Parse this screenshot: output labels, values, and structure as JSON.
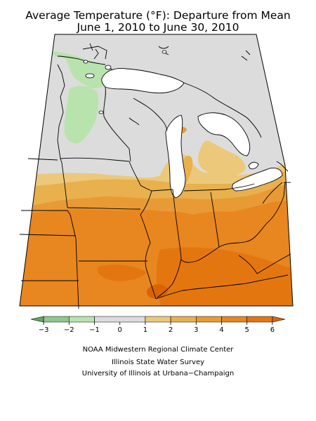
{
  "title": {
    "line1": "Average Temperature (°F): Departure from Mean",
    "line2": "June 1, 2010 to June 30, 2010"
  },
  "legend": {
    "tick_labels": [
      "−3",
      "−2",
      "−1",
      "0",
      "1",
      "2",
      "3",
      "4",
      "5",
      "6"
    ],
    "bins": [
      {
        "from": -3.5,
        "to": -3,
        "color": "#5fa85f"
      },
      {
        "from": -3,
        "to": -2,
        "color": "#8ec88a"
      },
      {
        "from": -2,
        "to": -1,
        "color": "#b9e3ac"
      },
      {
        "from": -1,
        "to": 1,
        "color": "#dcdcdc"
      },
      {
        "from": 1,
        "to": 2,
        "color": "#ecc97a"
      },
      {
        "from": 2,
        "to": 3,
        "color": "#e8b14e"
      },
      {
        "from": 3,
        "to": 4,
        "color": "#e89a35"
      },
      {
        "from": 4,
        "to": 5,
        "color": "#e8861f"
      },
      {
        "from": 5,
        "to": 6,
        "color": "#e47610"
      },
      {
        "from": 6,
        "to": 6.5,
        "color": "#d96400"
      }
    ]
  },
  "credits": {
    "line1": "NOAA Midwestern Regional Climate Center",
    "line2": "Illinois State Water Survey",
    "line3": "University of Illinois at Urbana−Champaign"
  }
}
